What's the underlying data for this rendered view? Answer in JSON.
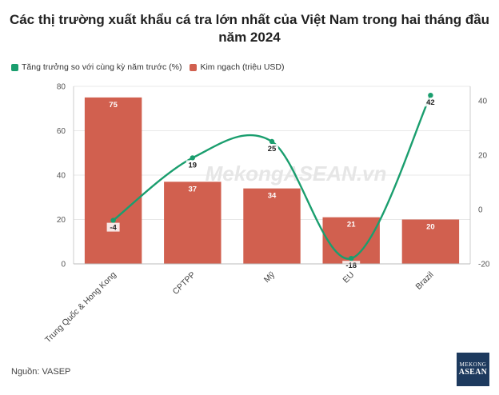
{
  "title": "Các thị trường xuất khẩu cá tra lớn nhất của Việt Nam trong hai tháng đầu năm 2024",
  "source": "Nguồn: VASEP",
  "watermark": "MekongASEAN.vn",
  "logo": {
    "line1": "MEKONG",
    "line2": "ASEAN"
  },
  "chart_data": {
    "type": "bar",
    "categories": [
      "Trung Quốc & Hong Kong",
      "CPTPP",
      "Mỹ",
      "EU",
      "Brazil"
    ],
    "series": [
      {
        "name": "Tăng trưởng so với cùng kỳ năm trước (%)",
        "type": "line",
        "axis": "right",
        "color": "#1a9e6e",
        "values": [
          -4,
          19,
          25,
          -18,
          42
        ]
      },
      {
        "name": "Kim ngạch (triệu USD)",
        "type": "bar",
        "axis": "left",
        "color": "#d1604f",
        "values": [
          75,
          37,
          34,
          21,
          20
        ]
      }
    ],
    "y_left": {
      "range": [
        0,
        80
      ],
      "ticks": [
        0,
        20,
        40,
        60,
        80
      ]
    },
    "y_right": {
      "range": [
        -20,
        45
      ],
      "ticks": [
        -20,
        0,
        20,
        40
      ]
    },
    "legend_position": "top-left",
    "grid": true
  }
}
